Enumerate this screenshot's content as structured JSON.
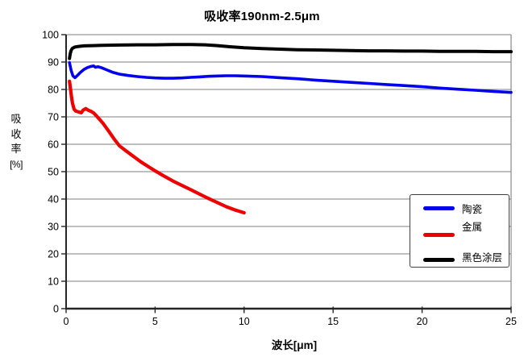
{
  "title": "吸收率190nm-2.5μm",
  "chart_data": {
    "type": "line",
    "title": "吸收率190nm-2.5μm",
    "xlabel": "波长[μm]",
    "ylabel": "吸收率[%]",
    "ylabel_lines": [
      "吸",
      "收",
      "率",
      "[%]"
    ],
    "xlim": [
      0,
      25
    ],
    "ylim": [
      0,
      100
    ],
    "x_ticks": [
      "0",
      "5",
      "10",
      "15",
      "20",
      "25"
    ],
    "y_ticks": [
      "0",
      "10",
      "20",
      "30",
      "40",
      "50",
      "60",
      "70",
      "80",
      "90",
      "100"
    ],
    "grid": "horizontal-gray",
    "legend_position": "inside-right",
    "series": [
      {
        "name": "陶瓷",
        "color": "#0000ee",
        "width": 3.6,
        "points": [
          [
            0.19,
            89.8
          ],
          [
            0.28,
            87.0
          ],
          [
            0.38,
            85.0
          ],
          [
            0.5,
            84.3
          ],
          [
            0.65,
            85.2
          ],
          [
            0.8,
            86.2
          ],
          [
            1.0,
            87.3
          ],
          [
            1.2,
            88.0
          ],
          [
            1.4,
            88.4
          ],
          [
            1.55,
            88.6
          ],
          [
            1.65,
            88.1
          ],
          [
            1.8,
            88.3
          ],
          [
            2.0,
            87.9
          ],
          [
            2.3,
            87.1
          ],
          [
            2.6,
            86.3
          ],
          [
            3.0,
            85.6
          ],
          [
            3.5,
            85.1
          ],
          [
            4.0,
            84.7
          ],
          [
            4.5,
            84.4
          ],
          [
            5.0,
            84.2
          ],
          [
            5.5,
            84.1
          ],
          [
            6.0,
            84.1
          ],
          [
            6.5,
            84.2
          ],
          [
            7.0,
            84.4
          ],
          [
            7.5,
            84.6
          ],
          [
            8.0,
            84.8
          ],
          [
            8.5,
            84.9
          ],
          [
            9.0,
            85.0
          ],
          [
            9.5,
            85.0
          ],
          [
            10.0,
            84.9
          ],
          [
            11.0,
            84.7
          ],
          [
            12.0,
            84.3
          ],
          [
            13.0,
            83.9
          ],
          [
            14.0,
            83.4
          ],
          [
            15.0,
            83.0
          ],
          [
            16.0,
            82.6
          ],
          [
            17.0,
            82.2
          ],
          [
            18.0,
            81.8
          ],
          [
            19.0,
            81.4
          ],
          [
            20.0,
            81.0
          ],
          [
            21.0,
            80.5
          ],
          [
            22.0,
            80.1
          ],
          [
            23.0,
            79.7
          ],
          [
            24.0,
            79.3
          ],
          [
            25.0,
            78.9
          ]
        ]
      },
      {
        "name": "金属",
        "color": "#ee0000",
        "width": 4.2,
        "points": [
          [
            0.19,
            83.0
          ],
          [
            0.24,
            80.5
          ],
          [
            0.3,
            77.5
          ],
          [
            0.36,
            75.0
          ],
          [
            0.45,
            72.8
          ],
          [
            0.55,
            72.1
          ],
          [
            0.7,
            71.8
          ],
          [
            0.85,
            71.5
          ],
          [
            0.95,
            72.4
          ],
          [
            1.1,
            73.0
          ],
          [
            1.25,
            72.4
          ],
          [
            1.4,
            72.0
          ],
          [
            1.55,
            71.4
          ],
          [
            1.7,
            70.4
          ],
          [
            1.9,
            68.9
          ],
          [
            2.1,
            67.4
          ],
          [
            2.4,
            64.7
          ],
          [
            2.7,
            61.9
          ],
          [
            3.0,
            59.4
          ],
          [
            3.4,
            57.4
          ],
          [
            3.8,
            55.5
          ],
          [
            4.2,
            53.6
          ],
          [
            4.6,
            51.9
          ],
          [
            5.0,
            50.3
          ],
          [
            5.5,
            48.4
          ],
          [
            6.0,
            46.6
          ],
          [
            6.5,
            45.0
          ],
          [
            7.0,
            43.4
          ],
          [
            7.5,
            41.8
          ],
          [
            8.0,
            40.2
          ],
          [
            8.5,
            38.7
          ],
          [
            9.0,
            37.2
          ],
          [
            9.5,
            36.0
          ],
          [
            10.0,
            35.0
          ]
        ]
      },
      {
        "name": "黑色涂层",
        "color": "#000000",
        "width": 4.0,
        "points": [
          [
            0.19,
            91.3
          ],
          [
            0.23,
            93.0
          ],
          [
            0.28,
            94.2
          ],
          [
            0.35,
            95.0
          ],
          [
            0.5,
            95.5
          ],
          [
            0.7,
            95.7
          ],
          [
            1.0,
            95.9
          ],
          [
            1.5,
            96.0
          ],
          [
            2.0,
            96.1
          ],
          [
            3.0,
            96.2
          ],
          [
            4.0,
            96.3
          ],
          [
            5.0,
            96.3
          ],
          [
            6.0,
            96.4
          ],
          [
            7.0,
            96.4
          ],
          [
            7.8,
            96.3
          ],
          [
            8.5,
            96.0
          ],
          [
            9.2,
            95.6
          ],
          [
            10.0,
            95.2
          ],
          [
            11.0,
            94.9
          ],
          [
            12.0,
            94.7
          ],
          [
            13.0,
            94.5
          ],
          [
            14.0,
            94.4
          ],
          [
            15.0,
            94.3
          ],
          [
            16.0,
            94.2
          ],
          [
            17.0,
            94.1
          ],
          [
            18.0,
            94.1
          ],
          [
            19.0,
            94.0
          ],
          [
            20.0,
            94.0
          ],
          [
            21.0,
            93.9
          ],
          [
            22.0,
            93.9
          ],
          [
            23.0,
            93.9
          ],
          [
            24.0,
            93.8
          ],
          [
            25.0,
            93.8
          ]
        ]
      }
    ]
  },
  "colors": {
    "grid": "#999999",
    "plot_right_border": "#888888",
    "axis": "#262626",
    "tick_label": "#000000",
    "legend_border": "#404040",
    "background": "#ffffff"
  }
}
